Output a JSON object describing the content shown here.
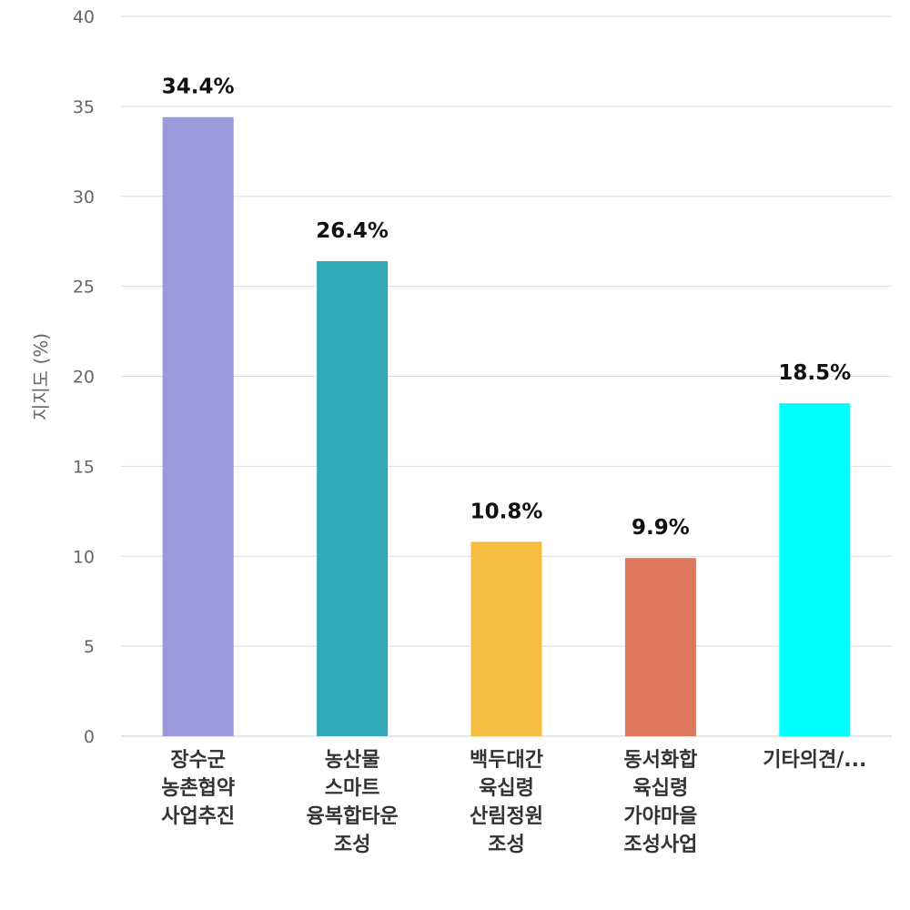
{
  "chart_data": {
    "type": "bar",
    "ylabel": "지지도 (%)",
    "ylim": [
      0,
      40
    ],
    "yticks": [
      0,
      5,
      10,
      15,
      20,
      25,
      30,
      35,
      40
    ],
    "grid": true,
    "legend": "none",
    "categories": [
      [
        "장수군",
        "농촌협약",
        "사업추진"
      ],
      [
        "농산물",
        "스마트",
        "융복합타운",
        "조성"
      ],
      [
        "백두대간",
        "육십령",
        "산림정원",
        "조성"
      ],
      [
        "동서화합",
        "육십령",
        "가야마을",
        "조성사업"
      ],
      [
        "기타의견/..."
      ]
    ],
    "values": [
      34.4,
      26.4,
      10.8,
      9.9,
      18.5
    ],
    "value_labels": [
      "34.4%",
      "26.4%",
      "10.8%",
      "9.9%",
      "18.5%"
    ],
    "colors": [
      "#9999dd",
      "#31a9b8",
      "#f4bd41",
      "#dc775b",
      "#00ffff"
    ]
  }
}
